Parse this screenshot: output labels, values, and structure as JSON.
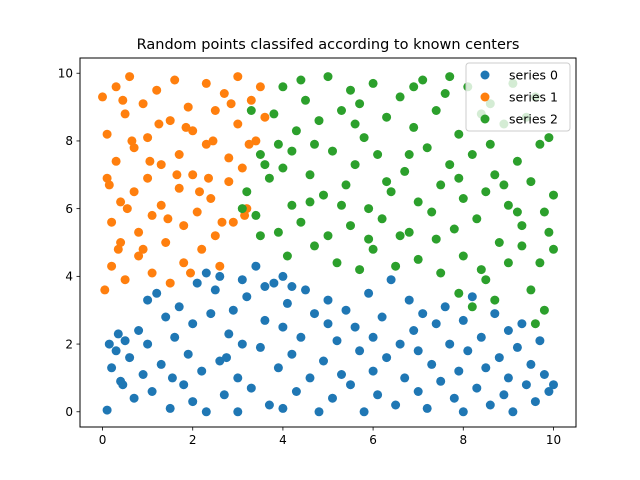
{
  "chart_data": {
    "type": "scatter",
    "title": "Random points classifed according to known centers",
    "xlabel": "",
    "ylabel": "",
    "xlim": [
      -0.5,
      10.5
    ],
    "ylim": [
      -0.45,
      10.45
    ],
    "xticks": [
      0,
      2,
      4,
      6,
      8,
      10
    ],
    "yticks": [
      0,
      2,
      4,
      6,
      8,
      10
    ],
    "grid": false,
    "legend_position": "top-right",
    "series": [
      {
        "name": "series 0",
        "color": "#1f77b4",
        "points": [
          [
            0.1,
            0.05
          ],
          [
            0.2,
            1.3
          ],
          [
            0.3,
            1.8
          ],
          [
            0.35,
            2.3
          ],
          [
            0.4,
            0.9
          ],
          [
            0.5,
            2.1
          ],
          [
            0.6,
            1.6
          ],
          [
            0.7,
            0.4
          ],
          [
            0.8,
            2.4
          ],
          [
            0.9,
            1.1
          ],
          [
            1.0,
            3.3
          ],
          [
            1.0,
            2.0
          ],
          [
            1.1,
            0.6
          ],
          [
            1.2,
            3.5
          ],
          [
            1.3,
            1.4
          ],
          [
            1.4,
            2.8
          ],
          [
            1.5,
            0.1
          ],
          [
            1.6,
            2.2
          ],
          [
            1.7,
            3.1
          ],
          [
            1.8,
            0.8
          ],
          [
            1.9,
            1.7
          ],
          [
            2.0,
            2.6
          ],
          [
            2.0,
            0.3
          ],
          [
            2.1,
            3.8
          ],
          [
            2.2,
            1.2
          ],
          [
            2.3,
            0.0
          ],
          [
            2.4,
            2.9
          ],
          [
            2.5,
            3.6
          ],
          [
            2.6,
            1.5
          ],
          [
            2.7,
            0.5
          ],
          [
            2.8,
            2.3
          ],
          [
            2.9,
            3.0
          ],
          [
            3.0,
            1.0
          ],
          [
            3.0,
            0.0
          ],
          [
            3.1,
            2.0
          ],
          [
            3.2,
            3.4
          ],
          [
            3.3,
            0.7
          ],
          [
            3.4,
            4.3
          ],
          [
            3.5,
            1.9
          ],
          [
            3.6,
            2.7
          ],
          [
            3.7,
            0.2
          ],
          [
            3.8,
            3.8
          ],
          [
            3.9,
            1.3
          ],
          [
            4.0,
            2.5
          ],
          [
            4.0,
            0.1
          ],
          [
            4.1,
            3.2
          ],
          [
            4.2,
            1.7
          ],
          [
            4.3,
            0.6
          ],
          [
            4.4,
            2.2
          ],
          [
            4.5,
            3.6
          ],
          [
            4.6,
            1.0
          ],
          [
            4.7,
            2.9
          ],
          [
            4.8,
            0.0
          ],
          [
            4.9,
            1.5
          ],
          [
            5.0,
            2.6
          ],
          [
            5.0,
            3.3
          ],
          [
            5.1,
            0.4
          ],
          [
            5.2,
            2.1
          ],
          [
            5.3,
            1.1
          ],
          [
            5.4,
            3.0
          ],
          [
            5.5,
            0.8
          ],
          [
            5.6,
            2.5
          ],
          [
            5.7,
            1.8
          ],
          [
            5.8,
            0.0
          ],
          [
            5.9,
            3.5
          ],
          [
            6.0,
            2.2
          ],
          [
            6.0,
            1.2
          ],
          [
            6.1,
            0.5
          ],
          [
            6.2,
            2.8
          ],
          [
            6.3,
            1.6
          ],
          [
            6.4,
            3.9
          ],
          [
            6.5,
            0.2
          ],
          [
            6.6,
            2.0
          ],
          [
            6.7,
            1.0
          ],
          [
            6.8,
            3.3
          ],
          [
            6.9,
            2.4
          ],
          [
            7.0,
            0.6
          ],
          [
            7.0,
            1.8
          ],
          [
            7.1,
            2.9
          ],
          [
            7.2,
            0.1
          ],
          [
            7.3,
            1.4
          ],
          [
            7.4,
            2.6
          ],
          [
            7.5,
            0.9
          ],
          [
            7.6,
            3.1
          ],
          [
            7.7,
            2.0
          ],
          [
            7.8,
            0.4
          ],
          [
            7.9,
            1.2
          ],
          [
            8.0,
            2.7
          ],
          [
            8.0,
            0.0
          ],
          [
            8.1,
            1.8
          ],
          [
            8.2,
            3.4
          ],
          [
            8.3,
            0.7
          ],
          [
            8.4,
            2.2
          ],
          [
            8.5,
            1.3
          ],
          [
            8.6,
            0.2
          ],
          [
            8.7,
            2.9
          ],
          [
            8.8,
            1.6
          ],
          [
            8.9,
            0.5
          ],
          [
            9.0,
            2.4
          ],
          [
            9.0,
            1.0
          ],
          [
            9.1,
            0.0
          ],
          [
            9.2,
            1.9
          ],
          [
            9.3,
            2.6
          ],
          [
            9.4,
            0.8
          ],
          [
            9.5,
            1.4
          ],
          [
            9.6,
            0.3
          ],
          [
            9.7,
            2.1
          ],
          [
            9.8,
            1.1
          ],
          [
            9.9,
            0.6
          ],
          [
            10.0,
            0.8
          ],
          [
            2.3,
            4.1
          ],
          [
            2.6,
            4.0
          ],
          [
            3.1,
            3.9
          ],
          [
            3.6,
            3.7
          ],
          [
            4.0,
            4.0
          ],
          [
            4.2,
            3.7
          ],
          [
            0.15,
            2.0
          ],
          [
            0.45,
            0.8
          ],
          [
            1.55,
            1.0
          ],
          [
            2.75,
            1.6
          ]
        ]
      },
      {
        "name": "series 1",
        "color": "#ff7f0e",
        "points": [
          [
            0.0,
            9.3
          ],
          [
            0.1,
            8.2
          ],
          [
            0.1,
            6.9
          ],
          [
            0.2,
            5.6
          ],
          [
            0.2,
            4.3
          ],
          [
            0.3,
            9.6
          ],
          [
            0.3,
            7.4
          ],
          [
            0.4,
            6.2
          ],
          [
            0.4,
            5.0
          ],
          [
            0.5,
            8.8
          ],
          [
            0.5,
            3.9
          ],
          [
            0.6,
            9.9
          ],
          [
            0.7,
            7.8
          ],
          [
            0.7,
            6.5
          ],
          [
            0.8,
            5.3
          ],
          [
            0.8,
            4.6
          ],
          [
            0.9,
            9.1
          ],
          [
            1.0,
            8.1
          ],
          [
            1.0,
            6.9
          ],
          [
            1.1,
            5.8
          ],
          [
            1.1,
            4.1
          ],
          [
            1.2,
            9.5
          ],
          [
            1.3,
            7.3
          ],
          [
            1.3,
            6.1
          ],
          [
            1.4,
            5.0
          ],
          [
            1.5,
            8.6
          ],
          [
            1.5,
            3.8
          ],
          [
            1.6,
            9.8
          ],
          [
            1.7,
            7.6
          ],
          [
            1.7,
            6.6
          ],
          [
            1.8,
            5.5
          ],
          [
            1.8,
            4.4
          ],
          [
            1.9,
            9.0
          ],
          [
            2.0,
            8.3
          ],
          [
            2.0,
            7.0
          ],
          [
            2.1,
            5.9
          ],
          [
            2.2,
            4.8
          ],
          [
            2.3,
            9.7
          ],
          [
            2.3,
            7.9
          ],
          [
            2.4,
            6.3
          ],
          [
            2.5,
            5.2
          ],
          [
            2.5,
            8.9
          ],
          [
            2.6,
            4.3
          ],
          [
            2.7,
            9.4
          ],
          [
            2.8,
            7.5
          ],
          [
            2.8,
            6.8
          ],
          [
            2.9,
            5.6
          ],
          [
            3.0,
            8.5
          ],
          [
            3.0,
            9.9
          ],
          [
            3.1,
            7.2
          ],
          [
            3.2,
            6.0
          ],
          [
            3.3,
            9.2
          ],
          [
            3.4,
            8.0
          ],
          [
            3.5,
            9.6
          ],
          [
            3.6,
            8.7
          ],
          [
            0.15,
            6.7
          ],
          [
            0.35,
            4.8
          ],
          [
            0.55,
            6.0
          ],
          [
            0.65,
            8.0
          ],
          [
            0.9,
            4.8
          ],
          [
            1.25,
            8.5
          ],
          [
            1.45,
            5.7
          ],
          [
            1.65,
            7.0
          ],
          [
            1.95,
            4.1
          ],
          [
            2.15,
            6.5
          ],
          [
            2.45,
            8.0
          ],
          [
            2.65,
            5.6
          ],
          [
            2.85,
            9.1
          ],
          [
            3.15,
            5.8
          ],
          [
            3.25,
            7.9
          ],
          [
            0.05,
            3.6
          ],
          [
            0.45,
            9.2
          ],
          [
            1.05,
            7.4
          ],
          [
            1.85,
            8.4
          ],
          [
            2.35,
            6.9
          ]
        ]
      },
      {
        "name": "series 2",
        "color": "#2ca02c",
        "points": [
          [
            3.2,
            6.5
          ],
          [
            3.4,
            5.8
          ],
          [
            3.5,
            7.6
          ],
          [
            3.7,
            6.9
          ],
          [
            3.8,
            8.8
          ],
          [
            3.9,
            5.3
          ],
          [
            4.0,
            9.6
          ],
          [
            4.0,
            7.2
          ],
          [
            4.1,
            4.6
          ],
          [
            4.2,
            6.1
          ],
          [
            4.3,
            8.3
          ],
          [
            4.4,
            5.6
          ],
          [
            4.5,
            9.2
          ],
          [
            4.6,
            7.0
          ],
          [
            4.7,
            4.9
          ],
          [
            4.8,
            8.6
          ],
          [
            4.9,
            6.4
          ],
          [
            5.0,
            9.9
          ],
          [
            5.0,
            5.2
          ],
          [
            5.1,
            7.7
          ],
          [
            5.2,
            4.4
          ],
          [
            5.3,
            8.9
          ],
          [
            5.4,
            6.7
          ],
          [
            5.5,
            9.5
          ],
          [
            5.5,
            5.5
          ],
          [
            5.6,
            7.3
          ],
          [
            5.7,
            4.2
          ],
          [
            5.8,
            8.1
          ],
          [
            5.9,
            6.0
          ],
          [
            6.0,
            9.7
          ],
          [
            6.0,
            4.8
          ],
          [
            6.1,
            7.6
          ],
          [
            6.2,
            5.7
          ],
          [
            6.3,
            8.7
          ],
          [
            6.4,
            6.5
          ],
          [
            6.5,
            4.3
          ],
          [
            6.6,
            9.3
          ],
          [
            6.7,
            7.1
          ],
          [
            6.8,
            5.3
          ],
          [
            6.9,
            8.4
          ],
          [
            7.0,
            6.2
          ],
          [
            7.0,
            4.5
          ],
          [
            7.1,
            9.8
          ],
          [
            7.2,
            7.8
          ],
          [
            7.3,
            5.9
          ],
          [
            7.4,
            8.9
          ],
          [
            7.5,
            6.7
          ],
          [
            7.5,
            4.1
          ],
          [
            7.6,
            9.4
          ],
          [
            7.7,
            7.3
          ],
          [
            7.8,
            5.4
          ],
          [
            7.9,
            8.2
          ],
          [
            8.0,
            6.3
          ],
          [
            8.0,
            4.6
          ],
          [
            8.1,
            9.6
          ],
          [
            8.2,
            7.6
          ],
          [
            8.3,
            5.7
          ],
          [
            8.4,
            8.8
          ],
          [
            8.5,
            6.5
          ],
          [
            8.5,
            3.9
          ],
          [
            8.6,
            9.1
          ],
          [
            8.7,
            7.0
          ],
          [
            8.8,
            5.0
          ],
          [
            8.9,
            8.5
          ],
          [
            9.0,
            6.1
          ],
          [
            9.0,
            4.4
          ],
          [
            9.1,
            9.7
          ],
          [
            9.2,
            7.4
          ],
          [
            9.3,
            5.5
          ],
          [
            9.4,
            8.7
          ],
          [
            9.5,
            6.8
          ],
          [
            9.5,
            3.6
          ],
          [
            9.6,
            9.3
          ],
          [
            9.7,
            7.9
          ],
          [
            9.8,
            5.9
          ],
          [
            9.9,
            8.1
          ],
          [
            10.0,
            6.4
          ],
          [
            10.0,
            4.8
          ],
          [
            9.8,
            3.0
          ],
          [
            9.6,
            2.6
          ],
          [
            8.7,
            3.3
          ],
          [
            8.2,
            3.1
          ],
          [
            7.9,
            3.5
          ],
          [
            3.6,
            7.3
          ],
          [
            3.9,
            7.9
          ],
          [
            4.4,
            9.8
          ],
          [
            4.7,
            7.9
          ],
          [
            5.3,
            6.1
          ],
          [
            5.9,
            5.1
          ],
          [
            6.3,
            6.8
          ],
          [
            6.8,
            7.6
          ],
          [
            7.4,
            5.1
          ],
          [
            7.9,
            6.9
          ],
          [
            8.4,
            4.2
          ],
          [
            8.9,
            6.7
          ],
          [
            9.3,
            4.9
          ],
          [
            9.7,
            4.4
          ],
          [
            3.3,
            8.9
          ],
          [
            4.2,
            7.7
          ],
          [
            5.7,
            9.1
          ],
          [
            6.6,
            5.2
          ],
          [
            7.7,
            9.9
          ],
          [
            8.6,
            7.9
          ],
          [
            9.2,
            5.9
          ],
          [
            9.9,
            5.3
          ],
          [
            3.1,
            6.0
          ],
          [
            3.5,
            5.2
          ],
          [
            4.6,
            6.2
          ],
          [
            5.6,
            8.5
          ],
          [
            6.9,
            9.6
          ]
        ]
      }
    ]
  }
}
